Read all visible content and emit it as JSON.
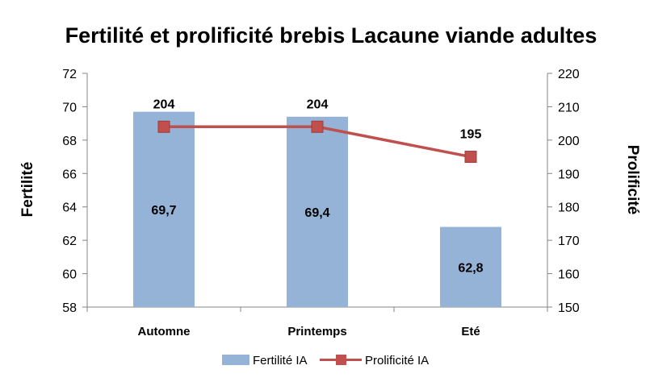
{
  "chart_data": {
    "type": "bar",
    "title": "Fertilité et prolificité brebis Lacaune viande adultes",
    "categories": [
      "Automne",
      "Printemps",
      "Eté"
    ],
    "ylabel": "Fertilité",
    "y2label": "Prolificité",
    "ylim": [
      58,
      72
    ],
    "y2lim": [
      150,
      220
    ],
    "yticks": [
      "58",
      "60",
      "62",
      "64",
      "66",
      "68",
      "70",
      "72"
    ],
    "y2ticks": [
      "150",
      "160",
      "170",
      "180",
      "190",
      "200",
      "210",
      "220"
    ],
    "grid": false,
    "legend_position": "bottom",
    "series": [
      {
        "name": "Fertilité IA",
        "type": "bar",
        "axis": "left",
        "color": "#95B3D7",
        "values": [
          69.7,
          69.4,
          62.8
        ],
        "labels": [
          "69,7",
          "69,4",
          "62,8"
        ]
      },
      {
        "name": "Prolificité IA",
        "type": "line",
        "axis": "right",
        "color": "#C0504D",
        "values": [
          204,
          204,
          195
        ],
        "labels": [
          "204",
          "204",
          "195"
        ]
      }
    ]
  }
}
